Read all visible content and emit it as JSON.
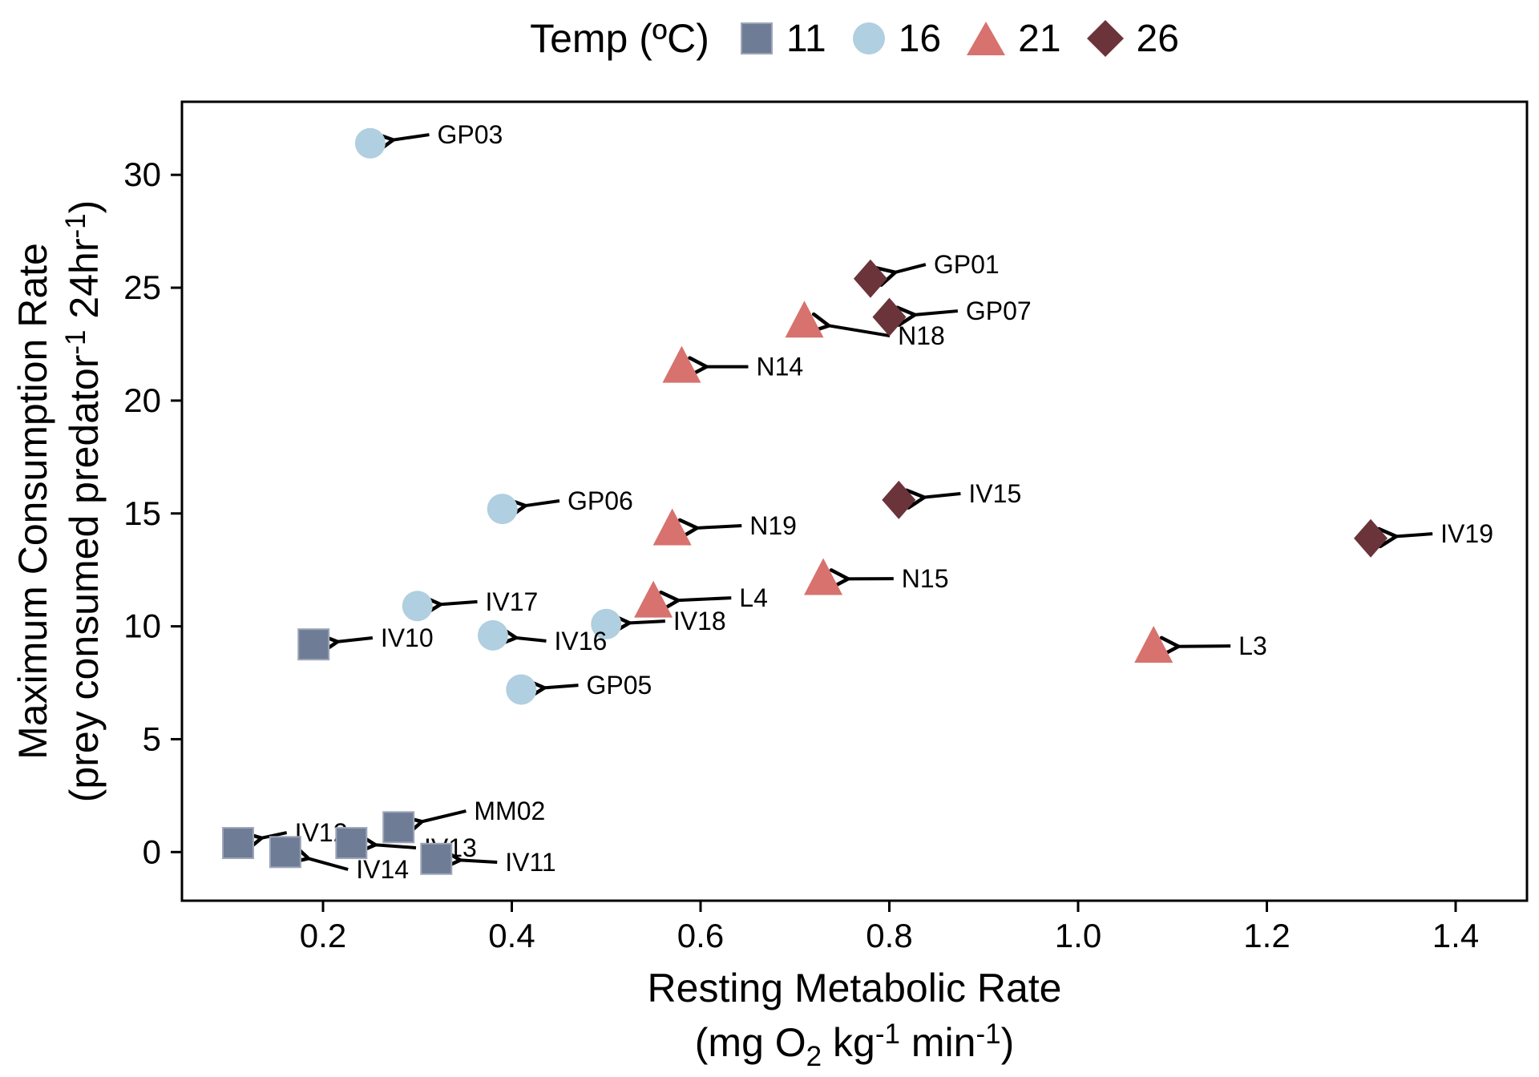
{
  "chart_data": {
    "type": "scatter",
    "title": "",
    "xlabel_line1": "Resting Metabolic Rate",
    "xlabel_line2_parts": [
      {
        "t": "(mg O"
      },
      {
        "t": "2",
        "style": "sub"
      },
      {
        "t": " kg"
      },
      {
        "t": "-1",
        "style": "sup"
      },
      {
        "t": " min"
      },
      {
        "t": "-1",
        "style": "sup"
      },
      {
        "t": ")"
      }
    ],
    "ylabel_line1": "Maximum Consumption Rate",
    "ylabel_line2_parts": [
      {
        "t": "(prey consumed predator"
      },
      {
        "t": "-1",
        "style": "sup"
      },
      {
        "t": " 24hr"
      },
      {
        "t": "-1",
        "style": "sup"
      },
      {
        "t": ")"
      }
    ],
    "legend": {
      "title": "Temp (ºC)",
      "position": "top"
    },
    "x_ticks": [
      0.2,
      0.4,
      0.6,
      0.8,
      1.0,
      1.2,
      1.4
    ],
    "y_ticks": [
      0,
      5,
      10,
      15,
      20,
      25,
      30
    ],
    "x_range": [
      0.05,
      1.48
    ],
    "y_range": [
      -2.2,
      33.2
    ],
    "grid": false,
    "series": [
      {
        "name": "11",
        "marker": "square",
        "color": "#6e7c96",
        "edge_color": "#9da6b8",
        "points": [
          {
            "id": "IV10",
            "x": 0.19,
            "y": 9.2,
            "label_x": 0.261,
            "label_y": 9.49
          },
          {
            "id": "MM02",
            "x": 0.28,
            "y": 1.1,
            "label_x": 0.36,
            "label_y": 1.82
          },
          {
            "id": "IV12",
            "x": 0.11,
            "y": 0.4,
            "label_x": 0.17,
            "label_y": 0.86
          },
          {
            "id": "IV13",
            "x": 0.23,
            "y": 0.4,
            "label_x": 0.307,
            "label_y": 0.19
          },
          {
            "id": "IV14",
            "x": 0.16,
            "y": 0.0,
            "label_x": 0.235,
            "label_y": -0.77
          },
          {
            "id": "IV11",
            "x": 0.32,
            "y": -0.3,
            "label_x": 0.393,
            "label_y": -0.45
          }
        ]
      },
      {
        "name": "16",
        "marker": "circle",
        "color": "#b0cfe0",
        "edge_color": "#b0cfe0",
        "points": [
          {
            "id": "GP03",
            "x": 0.25,
            "y": 31.4,
            "label_x": 0.321,
            "label_y": 31.78
          },
          {
            "id": "GP06",
            "x": 0.39,
            "y": 15.2,
            "label_x": 0.459,
            "label_y": 15.56
          },
          {
            "id": "IV17",
            "x": 0.3,
            "y": 10.9,
            "label_x": 0.372,
            "label_y": 11.09
          },
          {
            "id": "IV18",
            "x": 0.5,
            "y": 10.1,
            "label_x": 0.571,
            "label_y": 10.23
          },
          {
            "id": "IV16",
            "x": 0.38,
            "y": 9.6,
            "label_x": 0.445,
            "label_y": 9.35
          },
          {
            "id": "GP05",
            "x": 0.41,
            "y": 7.2,
            "label_x": 0.479,
            "label_y": 7.39
          }
        ]
      },
      {
        "name": "21",
        "marker": "triangle",
        "color": "#d7726e",
        "edge_color": "#d7726e",
        "points": [
          {
            "id": "N18",
            "x": 0.71,
            "y": 23.5,
            "label_x": 0.809,
            "label_y": 22.87
          },
          {
            "id": "N14",
            "x": 0.58,
            "y": 21.5,
            "label_x": 0.659,
            "label_y": 21.5
          },
          {
            "id": "N19",
            "x": 0.57,
            "y": 14.3,
            "label_x": 0.652,
            "label_y": 14.46
          },
          {
            "id": "N15",
            "x": 0.73,
            "y": 12.1,
            "label_x": 0.813,
            "label_y": 12.11
          },
          {
            "id": "L4",
            "x": 0.55,
            "y": 11.1,
            "label_x": 0.641,
            "label_y": 11.26
          },
          {
            "id": "L3",
            "x": 1.08,
            "y": 9.1,
            "label_x": 1.17,
            "label_y": 9.13
          }
        ]
      },
      {
        "name": "26",
        "marker": "diamond",
        "color": "#6b343a",
        "edge_color": "#6b343a",
        "points": [
          {
            "id": "GP01",
            "x": 0.78,
            "y": 25.4,
            "label_x": 0.847,
            "label_y": 26.03
          },
          {
            "id": "GP07",
            "x": 0.8,
            "y": 23.7,
            "label_x": 0.881,
            "label_y": 23.97
          },
          {
            "id": "IV15",
            "x": 0.81,
            "y": 15.6,
            "label_x": 0.884,
            "label_y": 15.88
          },
          {
            "id": "IV19",
            "x": 1.31,
            "y": 13.9,
            "label_x": 1.384,
            "label_y": 14.1
          }
        ]
      }
    ]
  }
}
